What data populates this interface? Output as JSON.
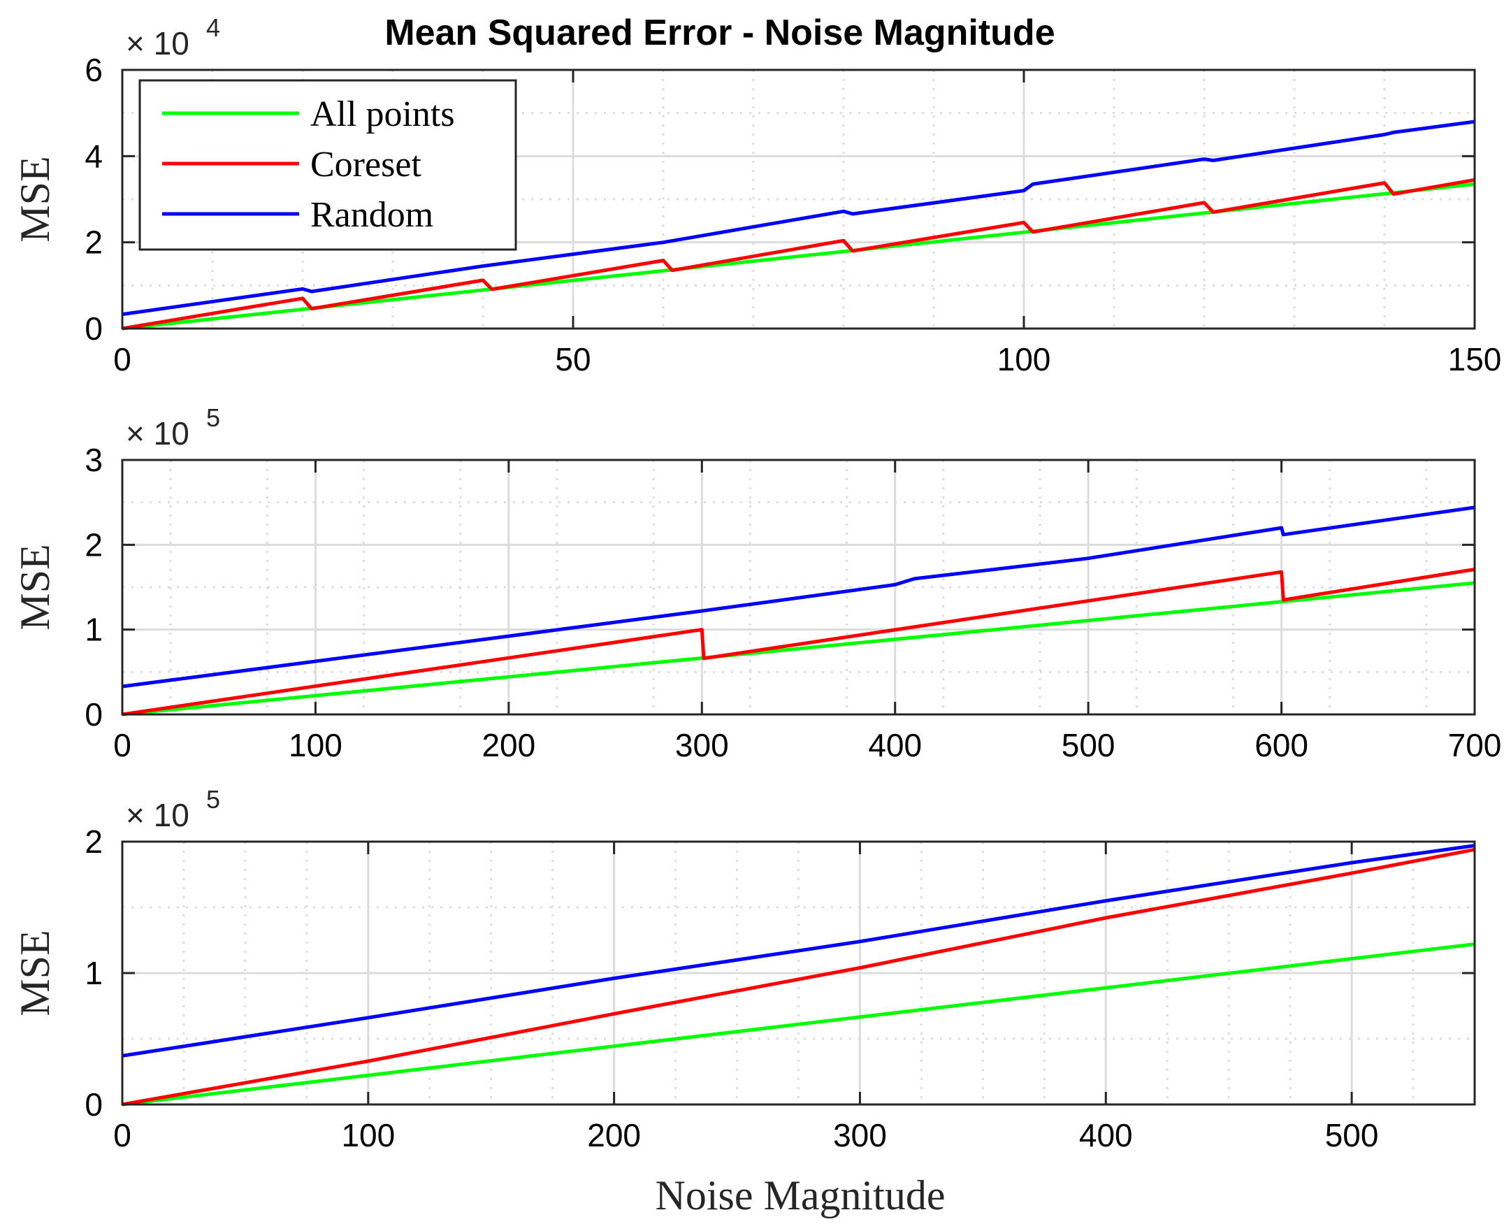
{
  "figure": {
    "title": "Mean Squared Error - Noise Magnitude",
    "xlabel": "Noise Magnitude"
  },
  "colors": {
    "all_points": "#00ff00",
    "coreset": "#ff0000",
    "random": "#0000ff",
    "grid": "#dcdcdc",
    "axes": "#262626"
  },
  "legend": {
    "placement": "top-left",
    "entries": [
      "All points",
      "Coreset",
      "Random"
    ]
  },
  "chart_data": [
    {
      "type": "line",
      "title": "Mean Squared Error - Noise Magnitude",
      "xlabel": "",
      "ylabel": "MSE",
      "exponent_label": "× 10",
      "exponent": "4",
      "xlim": [
        0,
        150
      ],
      "ylim": [
        0,
        6
      ],
      "xticks": [
        0,
        50,
        100,
        150
      ],
      "xtick_labels": [
        "0",
        "50",
        "100",
        "150"
      ],
      "yticks": [
        0,
        2,
        4,
        6
      ],
      "ytick_labels": [
        "0",
        "2",
        "4",
        "6"
      ],
      "minor_x": [
        10,
        20,
        30,
        40,
        60,
        70,
        80,
        90,
        110,
        120,
        130,
        140
      ],
      "minor_y": [
        1,
        3,
        5
      ],
      "grid": true,
      "series": [
        {
          "name": "All points",
          "color": "#00ff00",
          "x": [
            0,
            150
          ],
          "y": [
            0,
            3.35
          ]
        },
        {
          "name": "Coreset",
          "color": "#ff0000",
          "x": [
            0,
            20,
            21,
            40,
            41,
            60,
            61,
            80,
            81,
            100,
            101,
            120,
            121,
            140,
            141,
            150
          ],
          "y": [
            0,
            0.7,
            0.46,
            1.12,
            0.91,
            1.58,
            1.35,
            2.04,
            1.8,
            2.46,
            2.24,
            2.92,
            2.7,
            3.38,
            3.12,
            3.45
          ]
        },
        {
          "name": "Random",
          "color": "#0000ff",
          "x": [
            0,
            20,
            21,
            40,
            60,
            80,
            81,
            100,
            101,
            120,
            121,
            140,
            141,
            150
          ],
          "y": [
            0.33,
            0.92,
            0.86,
            1.45,
            2.0,
            2.72,
            2.66,
            3.2,
            3.35,
            3.93,
            3.9,
            4.5,
            4.55,
            4.8
          ]
        }
      ]
    },
    {
      "type": "line",
      "title": "",
      "xlabel": "",
      "ylabel": "MSE",
      "exponent_label": "× 10",
      "exponent": "5",
      "xlim": [
        0,
        700
      ],
      "ylim": [
        0,
        3
      ],
      "xticks": [
        0,
        100,
        200,
        300,
        400,
        500,
        600,
        700
      ],
      "xtick_labels": [
        "0",
        "100",
        "200",
        "300",
        "400",
        "500",
        "600",
        "700"
      ],
      "yticks": [
        0,
        1,
        2,
        3
      ],
      "ytick_labels": [
        "0",
        "1",
        "2",
        "3"
      ],
      "minor_x": [
        25,
        75,
        125,
        175,
        225,
        275,
        325,
        375,
        425,
        475,
        525,
        575,
        625,
        675
      ],
      "minor_y": [
        0.5,
        1.5,
        2.5
      ],
      "grid": true,
      "series": [
        {
          "name": "All points",
          "color": "#00ff00",
          "x": [
            0,
            700
          ],
          "y": [
            0,
            1.55
          ]
        },
        {
          "name": "Coreset",
          "color": "#ff0000",
          "x": [
            0,
            300,
            301,
            600,
            601,
            700
          ],
          "y": [
            0,
            1.0,
            0.66,
            1.68,
            1.35,
            1.71
          ]
        },
        {
          "name": "Random",
          "color": "#0000ff",
          "x": [
            0,
            300,
            400,
            410,
            500,
            600,
            601,
            700
          ],
          "y": [
            0.33,
            1.22,
            1.53,
            1.6,
            1.84,
            2.2,
            2.12,
            2.44
          ]
        }
      ]
    },
    {
      "type": "line",
      "title": "",
      "xlabel": "Noise Magnitude",
      "ylabel": "MSE",
      "exponent_label": "× 10",
      "exponent": "5",
      "xlim": [
        0,
        550
      ],
      "ylim": [
        0,
        2
      ],
      "xticks": [
        0,
        100,
        200,
        300,
        400,
        500
      ],
      "xtick_labels": [
        "0",
        "100",
        "200",
        "300",
        "400",
        "500"
      ],
      "yticks": [
        0,
        1,
        2
      ],
      "ytick_labels": [
        "0",
        "1",
        "2"
      ],
      "minor_x": [
        25,
        50,
        75,
        125,
        150,
        175,
        225,
        250,
        275,
        325,
        350,
        375,
        425,
        450,
        475,
        525
      ],
      "minor_y": [
        0.5,
        1.5
      ],
      "grid": true,
      "series": [
        {
          "name": "All points",
          "color": "#00ff00",
          "x": [
            0,
            550
          ],
          "y": [
            0,
            1.22
          ]
        },
        {
          "name": "Coreset",
          "color": "#ff0000",
          "x": [
            0,
            100,
            200,
            300,
            400,
            500,
            550
          ],
          "y": [
            0,
            0.33,
            0.69,
            1.04,
            1.42,
            1.76,
            1.94
          ]
        },
        {
          "name": "Random",
          "color": "#0000ff",
          "x": [
            0,
            100,
            200,
            300,
            400,
            500,
            550
          ],
          "y": [
            0.37,
            0.66,
            0.96,
            1.24,
            1.55,
            1.84,
            1.97
          ]
        }
      ]
    }
  ]
}
